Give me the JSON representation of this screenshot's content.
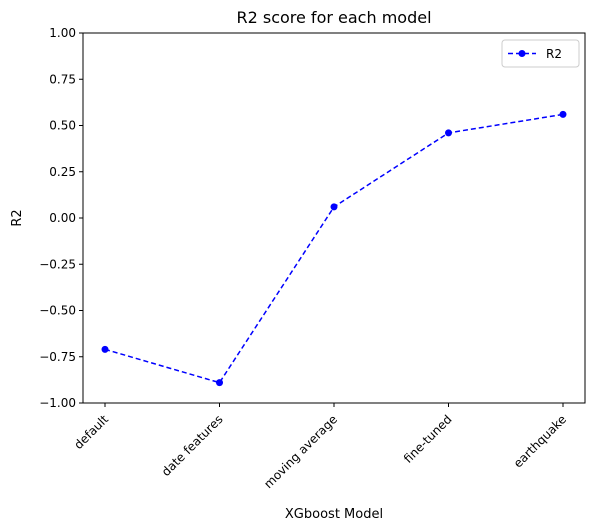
{
  "chart_data": {
    "type": "line",
    "title": "R2 score for each model",
    "xlabel": "XGboost Model",
    "ylabel": "R2",
    "categories": [
      "default",
      "date features",
      "moving average",
      "fine-tuned",
      "earthquake"
    ],
    "series": [
      {
        "name": "R2",
        "values": [
          -0.71,
          -0.89,
          0.06,
          0.46,
          0.56
        ],
        "color": "#0000ff",
        "line_style": "dashed",
        "marker": "circle"
      }
    ],
    "ylim": [
      -1.0,
      1.0
    ],
    "yticks": [
      "−1.00",
      "−0.75",
      "−0.50",
      "−0.25",
      "0.00",
      "0.25",
      "0.50",
      "0.75",
      "1.00"
    ],
    "grid": false,
    "legend": "top-right",
    "xtick_rotation": "45°"
  }
}
